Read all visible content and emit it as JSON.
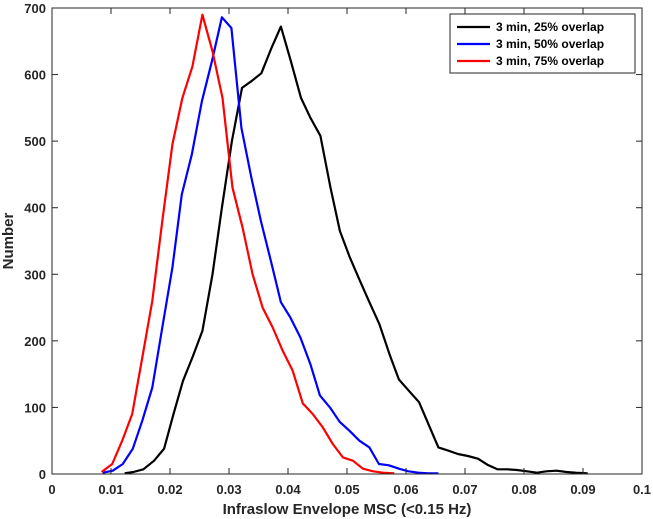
{
  "chart_data": {
    "type": "line",
    "title": "",
    "xlabel": "Infraslow Envelope MSC (<0.15 Hz)",
    "ylabel": "Number",
    "xlim": [
      0,
      0.1
    ],
    "ylim": [
      0,
      700
    ],
    "xticks": [
      "0",
      "0.01",
      "0.02",
      "0.03",
      "0.04",
      "0.05",
      "0.06",
      "0.07",
      "0.08",
      "0.09",
      "0.1"
    ],
    "yticks": [
      "0",
      "100",
      "200",
      "300",
      "400",
      "500",
      "600",
      "700"
    ],
    "grid": false,
    "legend_position": "top-right",
    "series": [
      {
        "name": "3 min, 25% overlap",
        "color": "#000000",
        "points": [
          [
            0.0123,
            1
          ],
          [
            0.0138,
            3
          ],
          [
            0.0155,
            7
          ],
          [
            0.0173,
            20
          ],
          [
            0.019,
            38
          ],
          [
            0.0206,
            90
          ],
          [
            0.0222,
            140
          ],
          [
            0.0238,
            175
          ],
          [
            0.0255,
            215
          ],
          [
            0.0272,
            300
          ],
          [
            0.0288,
            400
          ],
          [
            0.0305,
            500
          ],
          [
            0.0322,
            580
          ],
          [
            0.0338,
            590
          ],
          [
            0.0355,
            602
          ],
          [
            0.0372,
            640
          ],
          [
            0.0388,
            672
          ],
          [
            0.0405,
            620
          ],
          [
            0.0422,
            565
          ],
          [
            0.0438,
            535
          ],
          [
            0.0455,
            508
          ],
          [
            0.0472,
            430
          ],
          [
            0.0488,
            365
          ],
          [
            0.0505,
            325
          ],
          [
            0.0522,
            290
          ],
          [
            0.0538,
            258
          ],
          [
            0.0555,
            225
          ],
          [
            0.0572,
            180
          ],
          [
            0.0588,
            142
          ],
          [
            0.0605,
            125
          ],
          [
            0.0622,
            108
          ],
          [
            0.0638,
            75
          ],
          [
            0.0655,
            40
          ],
          [
            0.0672,
            35
          ],
          [
            0.0688,
            30
          ],
          [
            0.0705,
            27
          ],
          [
            0.0722,
            23
          ],
          [
            0.0738,
            14
          ],
          [
            0.0755,
            7
          ],
          [
            0.0772,
            7
          ],
          [
            0.0788,
            6
          ],
          [
            0.0805,
            4
          ],
          [
            0.0822,
            2
          ],
          [
            0.0838,
            4
          ],
          [
            0.0855,
            5
          ],
          [
            0.0872,
            3
          ],
          [
            0.0888,
            2
          ],
          [
            0.0908,
            1
          ]
        ]
      },
      {
        "name": "3 min, 50% overlap",
        "color": "#0000ff",
        "points": [
          [
            0.0086,
            2
          ],
          [
            0.0103,
            5
          ],
          [
            0.012,
            15
          ],
          [
            0.0137,
            38
          ],
          [
            0.0153,
            80
          ],
          [
            0.017,
            130
          ],
          [
            0.0187,
            220
          ],
          [
            0.0204,
            310
          ],
          [
            0.022,
            420
          ],
          [
            0.0237,
            480
          ],
          [
            0.0254,
            560
          ],
          [
            0.0271,
            620
          ],
          [
            0.0288,
            686
          ],
          [
            0.0304,
            670
          ],
          [
            0.0321,
            520
          ],
          [
            0.0338,
            445
          ],
          [
            0.0354,
            380
          ],
          [
            0.0371,
            320
          ],
          [
            0.0388,
            258
          ],
          [
            0.0404,
            235
          ],
          [
            0.0421,
            205
          ],
          [
            0.0438,
            165
          ],
          [
            0.0454,
            118
          ],
          [
            0.0471,
            100
          ],
          [
            0.0488,
            78
          ],
          [
            0.0504,
            65
          ],
          [
            0.0521,
            50
          ],
          [
            0.0538,
            40
          ],
          [
            0.0554,
            15
          ],
          [
            0.0571,
            13
          ],
          [
            0.0588,
            8
          ],
          [
            0.0604,
            4
          ],
          [
            0.0621,
            2
          ],
          [
            0.0638,
            1
          ],
          [
            0.0655,
            1
          ]
        ]
      },
      {
        "name": "3 min, 75% overlap",
        "color": "#ff0000",
        "points": [
          [
            0.0084,
            3
          ],
          [
            0.0102,
            15
          ],
          [
            0.0119,
            50
          ],
          [
            0.0136,
            90
          ],
          [
            0.0153,
            175
          ],
          [
            0.017,
            260
          ],
          [
            0.0187,
            380
          ],
          [
            0.0204,
            495
          ],
          [
            0.0221,
            565
          ],
          [
            0.0238,
            612
          ],
          [
            0.0255,
            690
          ],
          [
            0.0272,
            635
          ],
          [
            0.0289,
            565
          ],
          [
            0.0306,
            430
          ],
          [
            0.0323,
            370
          ],
          [
            0.034,
            300
          ],
          [
            0.0357,
            250
          ],
          [
            0.0374,
            220
          ],
          [
            0.0391,
            185
          ],
          [
            0.0408,
            155
          ],
          [
            0.0425,
            106
          ],
          [
            0.0442,
            90
          ],
          [
            0.0459,
            70
          ],
          [
            0.0476,
            45
          ],
          [
            0.0493,
            25
          ],
          [
            0.051,
            20
          ],
          [
            0.0527,
            8
          ],
          [
            0.0544,
            4
          ],
          [
            0.0561,
            2
          ],
          [
            0.058,
            1
          ]
        ]
      }
    ]
  }
}
